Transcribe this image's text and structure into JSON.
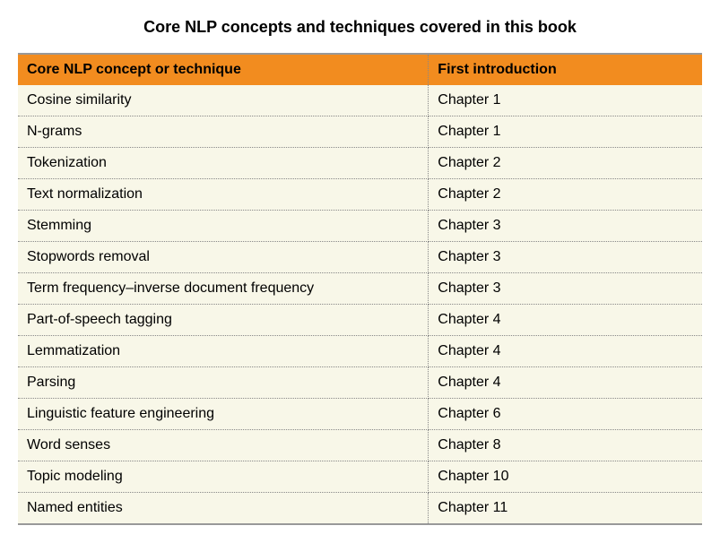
{
  "title": "Core NLP concepts and techniques covered in this book",
  "table": {
    "header_bg": "#f28c1f",
    "row_bg": "#f8f7e8",
    "border_color": "#999999",
    "dotted_color": "#888888",
    "columns": [
      {
        "label": "Core NLP concept or technique",
        "width_pct": 60
      },
      {
        "label": "First introduction",
        "width_pct": 40
      }
    ],
    "rows": [
      {
        "concept": "Cosine similarity",
        "intro": "Chapter 1"
      },
      {
        "concept": "N-grams",
        "intro": "Chapter 1"
      },
      {
        "concept": "Tokenization",
        "intro": "Chapter 2"
      },
      {
        "concept": "Text normalization",
        "intro": "Chapter 2"
      },
      {
        "concept": "Stemming",
        "intro": "Chapter 3"
      },
      {
        "concept": "Stopwords removal",
        "intro": "Chapter 3"
      },
      {
        "concept": "Term frequency–inverse document frequency",
        "intro": "Chapter 3"
      },
      {
        "concept": "Part-of-speech tagging",
        "intro": "Chapter 4"
      },
      {
        "concept": "Lemmatization",
        "intro": "Chapter 4"
      },
      {
        "concept": "Parsing",
        "intro": "Chapter 4"
      },
      {
        "concept": "Linguistic feature engineering",
        "intro": "Chapter 6"
      },
      {
        "concept": "Word senses",
        "intro": "Chapter 8"
      },
      {
        "concept": "Topic modeling",
        "intro": "Chapter 10"
      },
      {
        "concept": "Named entities",
        "intro": "Chapter 11"
      }
    ]
  }
}
